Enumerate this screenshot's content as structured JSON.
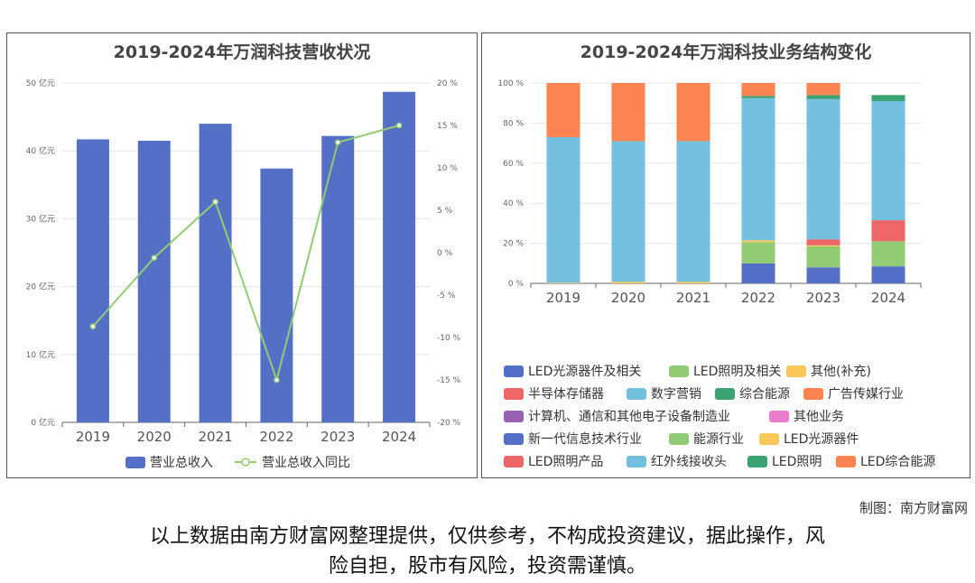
{
  "charts": {
    "left": {
      "title": "2019-2024年万润科技营收状况"
    },
    "right": {
      "title": "2019-2024年万润科技业务结构变化"
    }
  },
  "chart_data": [
    {
      "type": "bar",
      "title": "2019-2024年万润科技营收状况",
      "categories": [
        "2019",
        "2020",
        "2021",
        "2022",
        "2023",
        "2024"
      ],
      "y_ticks": [
        "0 亿元",
        "10 亿元",
        "20 亿元",
        "30 亿元",
        "40 亿元",
        "50 亿元"
      ],
      "y2_ticks": [
        "-20 %",
        "-15 %",
        "-10 %",
        "-5 %",
        "0 %",
        "5 %",
        "10 %",
        "15 %",
        "20 %"
      ],
      "ylim": [
        0,
        50
      ],
      "y2lim": [
        -20,
        20
      ],
      "series": [
        {
          "name": "营业总收入",
          "kind": "bar",
          "axis": "left",
          "color": "#5470c6",
          "values": [
            41.7,
            41.5,
            44.0,
            37.4,
            42.2,
            48.7
          ]
        },
        {
          "name": "营业总收入同比",
          "kind": "line",
          "axis": "right",
          "color": "#91cc75",
          "values": [
            -8.7,
            -0.6,
            6.0,
            -15.0,
            13.0,
            15.0
          ]
        }
      ],
      "grid": true,
      "legend": "bottom"
    },
    {
      "type": "bar",
      "stacked": true,
      "title": "2019-2024年万润科技业务结构变化",
      "categories": [
        "2019",
        "2020",
        "2021",
        "2022",
        "2023",
        "2024"
      ],
      "y_ticks": [
        "0 %",
        "20 %",
        "40 %",
        "60 %",
        "80 %",
        "100 %"
      ],
      "ylim": [
        0,
        100
      ],
      "legend": "bottom",
      "series": [
        {
          "name": "LED光源器件及相关",
          "color": "#5470c6",
          "values": [
            0,
            0,
            0,
            10.0,
            8.0,
            8.5
          ]
        },
        {
          "name": "LED照明及相关",
          "color": "#91cc75",
          "values": [
            0,
            0,
            0,
            10.5,
            10.5,
            12.5
          ]
        },
        {
          "name": "其他(补充)",
          "color": "#fac858",
          "values": [
            0.3,
            0.8,
            0.8,
            1.0,
            0.5,
            0
          ]
        },
        {
          "name": "半导体存储器",
          "color": "#ee6666",
          "values": [
            0,
            0,
            0,
            0,
            3.0,
            10.5
          ]
        },
        {
          "name": "数字营销",
          "color": "#73c0de",
          "values": [
            72.7,
            70.2,
            70.2,
            71.0,
            70.0,
            59.5
          ]
        },
        {
          "name": "综合能源",
          "color": "#3ba272",
          "values": [
            0,
            0,
            0,
            1.0,
            2.0,
            3.0
          ]
        },
        {
          "name": "广告传媒行业",
          "color": "#fc8452",
          "values": [
            27.0,
            29.0,
            29.0,
            6.5,
            6.0,
            0
          ]
        },
        {
          "name": "计算机、通信和其他电子设备制造业",
          "color": "#9a60b4",
          "values": [
            0,
            0,
            0,
            0,
            0,
            0
          ]
        },
        {
          "name": "其他业务",
          "color": "#ea7ccc",
          "values": [
            0,
            0,
            0,
            0,
            0,
            0
          ]
        },
        {
          "name": "新一代信息技术行业",
          "color": "#5470c6",
          "values": [
            0,
            0,
            0,
            0,
            0,
            0
          ]
        },
        {
          "name": "能源行业",
          "color": "#91cc75",
          "values": [
            0,
            0,
            0,
            0,
            0,
            0
          ]
        },
        {
          "name": "LED光源器件",
          "color": "#fac858",
          "values": [
            0,
            0,
            0,
            0,
            0,
            0
          ]
        },
        {
          "name": "LED照明产品",
          "color": "#ee6666",
          "values": [
            0,
            0,
            0,
            0,
            0,
            0
          ]
        },
        {
          "name": "红外线接收头",
          "color": "#73c0de",
          "values": [
            0,
            0,
            0,
            0,
            0,
            0
          ]
        },
        {
          "name": "LED照明",
          "color": "#3ba272",
          "values": [
            0,
            0,
            0,
            0,
            0,
            0
          ]
        },
        {
          "name": "LED综合能源",
          "color": "#fc8452",
          "values": [
            0,
            0,
            0,
            0,
            0,
            0
          ]
        }
      ]
    }
  ],
  "footer": {
    "credit": "制图：南方财富网",
    "disclaimer_line1": "以上数据由南方财富网整理提供，仅供参考，不构成投资建议，据此操作，风",
    "disclaimer_line2": "险自担，股市有风险，投资需谨慎。"
  }
}
